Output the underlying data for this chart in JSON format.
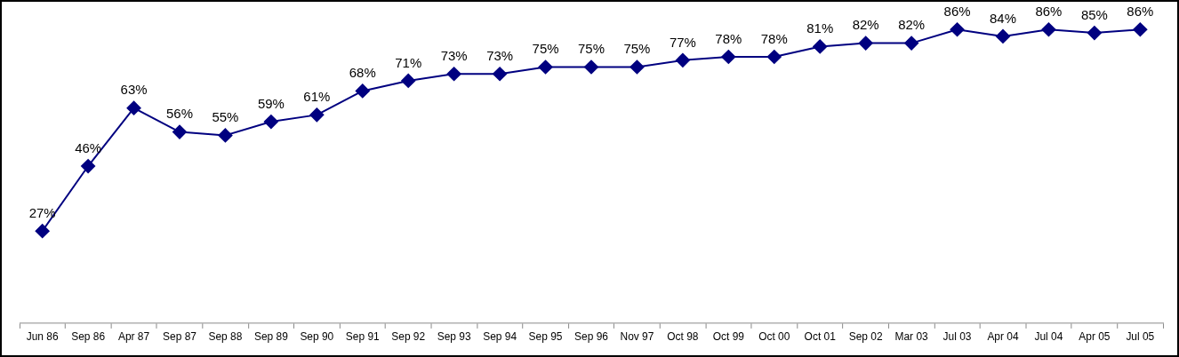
{
  "chart_data": {
    "type": "line",
    "categories": [
      "Jun 86",
      "Sep 86",
      "Apr 87",
      "Sep 87",
      "Sep 88",
      "Sep 89",
      "Sep 90",
      "Sep 91",
      "Sep 92",
      "Sep 93",
      "Sep 94",
      "Sep 95",
      "Sep 96",
      "Nov 97",
      "Oct 98",
      "Oct 99",
      "Oct 00",
      "Oct 01",
      "Sep 02",
      "Mar 03",
      "Jul 03",
      "Apr 04",
      "Jul 04",
      "Apr 05",
      "Jul 05"
    ],
    "values": [
      27,
      46,
      63,
      56,
      55,
      59,
      61,
      68,
      71,
      73,
      73,
      75,
      75,
      75,
      77,
      78,
      78,
      81,
      82,
      82,
      86,
      84,
      86,
      85,
      86
    ],
    "value_labels": [
      "27%",
      "46%",
      "63%",
      "56%",
      "55%",
      "59%",
      "61%",
      "68%",
      "71%",
      "73%",
      "73%",
      "75%",
      "75%",
      "75%",
      "77%",
      "78%",
      "78%",
      "81%",
      "82%",
      "82%",
      "86%",
      "84%",
      "86%",
      "85%",
      "86%"
    ],
    "color": "#000080",
    "marker": "diamond",
    "line_style": "solid",
    "tick_labels": "x",
    "grid": false,
    "legend": false
  }
}
